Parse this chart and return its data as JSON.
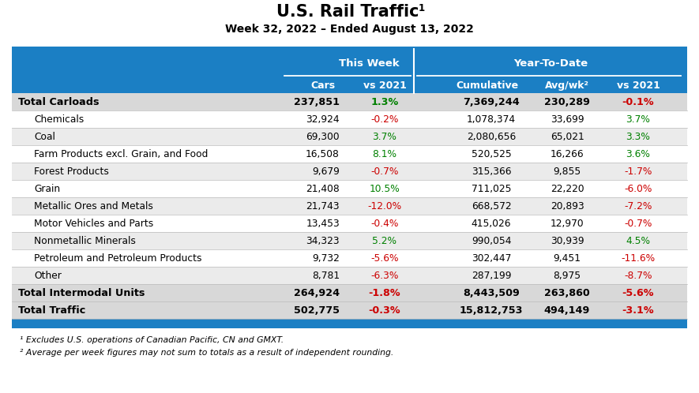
{
  "title": "U.S. Rail Traffic",
  "title_superscript": "1",
  "subtitle": "Week 32, 2022 – Ended August 13, 2022",
  "header_group1": "This Week",
  "header_group2": "Year-To-Date",
  "rows": [
    {
      "label": "Total Carloads",
      "bold": true,
      "indent": false,
      "cars": "237,851",
      "vs2021_tw": "1.3%",
      "vs2021_tw_color": "green",
      "cumulative": "7,369,244",
      "avgwk": "230,289",
      "vs2021_ytd": "-0.1%",
      "vs2021_ytd_color": "red"
    },
    {
      "label": "Chemicals",
      "bold": false,
      "indent": true,
      "cars": "32,924",
      "vs2021_tw": "-0.2%",
      "vs2021_tw_color": "red",
      "cumulative": "1,078,374",
      "avgwk": "33,699",
      "vs2021_ytd": "3.7%",
      "vs2021_ytd_color": "green"
    },
    {
      "label": "Coal",
      "bold": false,
      "indent": true,
      "cars": "69,300",
      "vs2021_tw": "3.7%",
      "vs2021_tw_color": "green",
      "cumulative": "2,080,656",
      "avgwk": "65,021",
      "vs2021_ytd": "3.3%",
      "vs2021_ytd_color": "green"
    },
    {
      "label": "Farm Products excl. Grain, and Food",
      "bold": false,
      "indent": true,
      "cars": "16,508",
      "vs2021_tw": "8.1%",
      "vs2021_tw_color": "green",
      "cumulative": "520,525",
      "avgwk": "16,266",
      "vs2021_ytd": "3.6%",
      "vs2021_ytd_color": "green"
    },
    {
      "label": "Forest Products",
      "bold": false,
      "indent": true,
      "cars": "9,679",
      "vs2021_tw": "-0.7%",
      "vs2021_tw_color": "red",
      "cumulative": "315,366",
      "avgwk": "9,855",
      "vs2021_ytd": "-1.7%",
      "vs2021_ytd_color": "red"
    },
    {
      "label": "Grain",
      "bold": false,
      "indent": true,
      "cars": "21,408",
      "vs2021_tw": "10.5%",
      "vs2021_tw_color": "green",
      "cumulative": "711,025",
      "avgwk": "22,220",
      "vs2021_ytd": "-6.0%",
      "vs2021_ytd_color": "red"
    },
    {
      "label": "Metallic Ores and Metals",
      "bold": false,
      "indent": true,
      "cars": "21,743",
      "vs2021_tw": "-12.0%",
      "vs2021_tw_color": "red",
      "cumulative": "668,572",
      "avgwk": "20,893",
      "vs2021_ytd": "-7.2%",
      "vs2021_ytd_color": "red"
    },
    {
      "label": "Motor Vehicles and Parts",
      "bold": false,
      "indent": true,
      "cars": "13,453",
      "vs2021_tw": "-0.4%",
      "vs2021_tw_color": "red",
      "cumulative": "415,026",
      "avgwk": "12,970",
      "vs2021_ytd": "-0.7%",
      "vs2021_ytd_color": "red"
    },
    {
      "label": "Nonmetallic Minerals",
      "bold": false,
      "indent": true,
      "cars": "34,323",
      "vs2021_tw": "5.2%",
      "vs2021_tw_color": "green",
      "cumulative": "990,054",
      "avgwk": "30,939",
      "vs2021_ytd": "4.5%",
      "vs2021_ytd_color": "green"
    },
    {
      "label": "Petroleum and Petroleum Products",
      "bold": false,
      "indent": true,
      "cars": "9,732",
      "vs2021_tw": "-5.6%",
      "vs2021_tw_color": "red",
      "cumulative": "302,447",
      "avgwk": "9,451",
      "vs2021_ytd": "-11.6%",
      "vs2021_ytd_color": "red"
    },
    {
      "label": "Other",
      "bold": false,
      "indent": true,
      "cars": "8,781",
      "vs2021_tw": "-6.3%",
      "vs2021_tw_color": "red",
      "cumulative": "287,199",
      "avgwk": "8,975",
      "vs2021_ytd": "-8.7%",
      "vs2021_ytd_color": "red"
    },
    {
      "label": "Total Intermodal Units",
      "bold": true,
      "indent": false,
      "cars": "264,924",
      "vs2021_tw": "-1.8%",
      "vs2021_tw_color": "red",
      "cumulative": "8,443,509",
      "avgwk": "263,860",
      "vs2021_ytd": "-5.6%",
      "vs2021_ytd_color": "red"
    },
    {
      "label": "Total Traffic",
      "bold": true,
      "indent": false,
      "cars": "502,775",
      "vs2021_tw": "-0.3%",
      "vs2021_tw_color": "red",
      "cumulative": "15,812,753",
      "avgwk": "494,149",
      "vs2021_ytd": "-3.1%",
      "vs2021_ytd_color": "red"
    }
  ],
  "footnotes": [
    "¹ Excludes U.S. operations of Canadian Pacific, CN and GMXT.",
    "² Average per week figures may not sum to totals as a result of independent rounding."
  ],
  "blue": "#1b7fc4",
  "alt_row": "#ebebeb",
  "white_row": "#ffffff",
  "bold_row": "#d8d8d8",
  "green": "#008000",
  "red": "#cc0000"
}
